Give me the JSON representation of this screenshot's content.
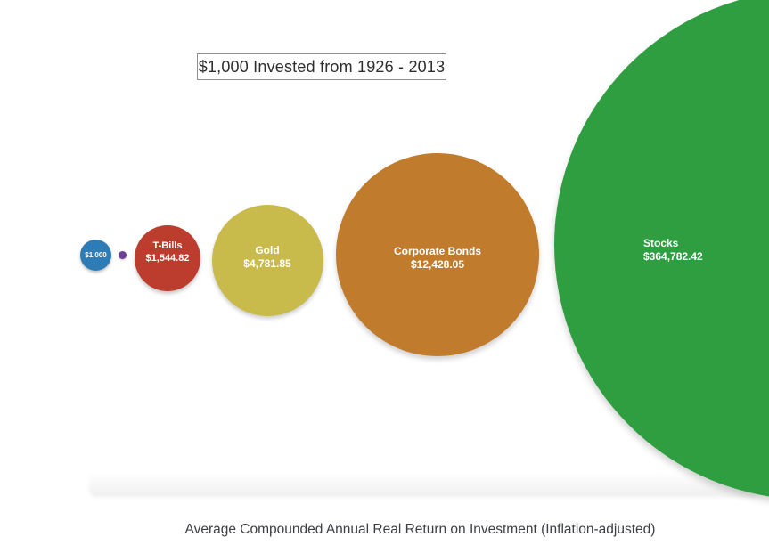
{
  "chart_data": {
    "type": "bubble",
    "title": "$1,000 Invested from 1926 - 2013",
    "caption": "Average Compounded Annual Real Return on Investment (Inflation-adjusted)",
    "value_encoding": "circle area proportional to ending value of $1,000 invested",
    "legend_position": "none",
    "background_color": "#ffffff",
    "bubbles": [
      {
        "label": "$1,000",
        "amount": 1000,
        "amount_display": "$1,000",
        "color": "#2e7cb5"
      },
      {
        "label": "",
        "amount": null,
        "amount_display": "",
        "color": "#6e4095"
      },
      {
        "label": "T-Bills",
        "amount": 1544.82,
        "amount_display": "$1,544.82",
        "color": "#bc3c2d"
      },
      {
        "label": "Gold",
        "amount": 4781.85,
        "amount_display": "$4,781.85",
        "color": "#c9ba4c"
      },
      {
        "label": "Corporate Bonds",
        "amount": 12428.05,
        "amount_display": "$12,428.05",
        "color": "#c07b2d"
      },
      {
        "label": "Stocks",
        "amount": 364782.42,
        "amount_display": "$364,782.42",
        "color": "#2f9e41"
      }
    ]
  }
}
